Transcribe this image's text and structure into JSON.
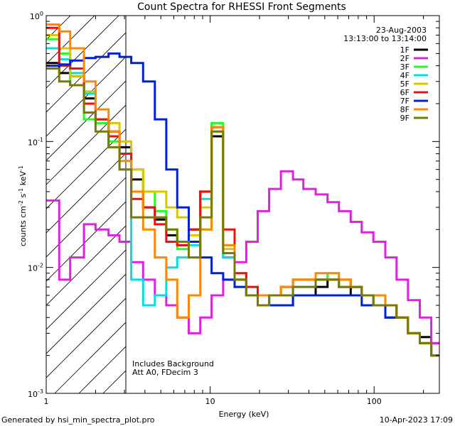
{
  "chart_data": {
    "type": "line",
    "title": "Count Spectra for RHESSI Front Segments",
    "date": "23-Aug-2003",
    "time_range": "13:13:00 to 13:14:00",
    "xlabel": "Energy (keV)",
    "ylabel_base": "counts cm",
    "ylabel_exp1": "-2",
    "ylabel_mid": " s",
    "ylabel_exp2": "-1",
    "ylabel_end": " keV",
    "ylabel_exp3": "-1",
    "xscale": "log",
    "yscale": "log",
    "xlim": [
      1,
      250
    ],
    "ylim": [
      0.001,
      1
    ],
    "x_ticks": [
      {
        "value": 1,
        "label": "1"
      },
      {
        "value": 10,
        "label": "10"
      },
      {
        "value": 100,
        "label": "100"
      }
    ],
    "y_ticks": [
      {
        "value": 1,
        "base": "10",
        "exp": "0"
      },
      {
        "value": 0.1,
        "base": "10",
        "exp": "-1"
      },
      {
        "value": 0.01,
        "base": "10",
        "exp": "-2"
      },
      {
        "value": 0.001,
        "base": "10",
        "exp": "-3"
      }
    ],
    "hatched_region_max_keV": 3,
    "annotation_lines": [
      "Includes Background",
      "Att A0, FDecim 3"
    ],
    "footer_left": "Generated by hsi_min_spectra_plot.pro",
    "footer_right": "10-Apr-2023 17:09",
    "legend_position": "top-right",
    "series": [
      {
        "name": "1F",
        "color": "#000000",
        "x": [
          1.0,
          1.2,
          1.4,
          1.7,
          2.0,
          2.4,
          2.8,
          3.3,
          3.9,
          4.6,
          5.4,
          6.3,
          7.4,
          8.7,
          10.2,
          12.0,
          14.1,
          16.6,
          19.5,
          22.9,
          27,
          32,
          37,
          44,
          52,
          61,
          72,
          84,
          99,
          117,
          137,
          161,
          190,
          223
        ],
        "y": [
          0.42,
          0.35,
          0.33,
          0.22,
          0.15,
          0.12,
          0.09,
          0.05,
          0.03,
          0.024,
          0.018,
          0.015,
          0.02,
          0.04,
          0.11,
          0.012,
          0.008,
          0.006,
          0.006,
          0.005,
          0.005,
          0.006,
          0.006,
          0.007,
          0.008,
          0.007,
          0.006,
          0.006,
          0.005,
          0.004,
          0.004,
          0.003,
          0.0028,
          0.0025
        ]
      },
      {
        "name": "2F",
        "color": "#e020e0",
        "x": [
          1.0,
          1.2,
          1.4,
          1.7,
          2.0,
          2.4,
          2.8,
          3.3,
          3.9,
          4.6,
          5.4,
          6.3,
          7.4,
          8.7,
          10.2,
          12.0,
          14.1,
          16.6,
          19.5,
          22.9,
          27,
          32,
          37,
          44,
          52,
          61,
          72,
          84,
          99,
          117,
          137,
          161,
          190,
          223
        ],
        "y": [
          0.034,
          0.008,
          0.012,
          0.022,
          0.02,
          0.018,
          0.016,
          0.011,
          0.008,
          0.006,
          0.005,
          0.004,
          0.003,
          0.004,
          0.006,
          0.008,
          0.011,
          0.016,
          0.028,
          0.042,
          0.058,
          0.05,
          0.042,
          0.038,
          0.033,
          0.028,
          0.023,
          0.019,
          0.016,
          0.012,
          0.008,
          0.0055,
          0.004,
          0.0025
        ]
      },
      {
        "name": "3F",
        "color": "#20ff20",
        "x": [
          1.0,
          1.2,
          1.4,
          1.7,
          2.0,
          2.4,
          2.8,
          3.3,
          3.9,
          4.6,
          5.4,
          6.3,
          7.4,
          8.7,
          10.2,
          12.0,
          14.1,
          16.6,
          19.5,
          22.9,
          27,
          32,
          37,
          44,
          52,
          61,
          72,
          84,
          99,
          117,
          137,
          161,
          190,
          223
        ],
        "y": [
          0.65,
          0.5,
          0.28,
          0.15,
          0.14,
          0.1,
          0.08,
          0.06,
          0.04,
          0.028,
          0.02,
          0.014,
          0.012,
          0.02,
          0.14,
          0.015,
          0.008,
          0.006,
          0.005,
          0.006,
          0.007,
          0.008,
          0.008,
          0.008,
          0.009,
          0.008,
          0.007,
          0.006,
          0.005,
          0.005,
          0.004,
          0.003,
          0.0025,
          0.002
        ]
      },
      {
        "name": "4F",
        "color": "#00e0e0",
        "x": [
          1.0,
          1.2,
          1.4,
          1.7,
          2.0,
          2.4,
          2.8,
          3.3,
          3.9,
          4.6,
          5.4,
          6.3,
          7.4,
          8.7,
          10.2,
          12.0,
          14.1,
          16.6,
          19.5,
          22.9,
          27,
          32,
          37,
          44,
          52,
          61,
          72,
          84,
          99,
          117,
          137,
          161,
          190,
          223
        ],
        "y": [
          0.55,
          0.45,
          0.35,
          0.24,
          0.15,
          0.09,
          0.06,
          0.008,
          0.005,
          0.006,
          0.01,
          0.012,
          0.015,
          0.035,
          0.13,
          0.012,
          0.007,
          0.006,
          0.005,
          0.006,
          0.006,
          0.007,
          0.007,
          0.008,
          0.008,
          0.007,
          0.007,
          0.006,
          0.005,
          0.005,
          0.004,
          0.003,
          0.0025,
          0.002
        ]
      },
      {
        "name": "5F",
        "color": "#d8c800",
        "x": [
          1.0,
          1.2,
          1.4,
          1.7,
          2.0,
          2.4,
          2.8,
          3.3,
          3.9,
          4.6,
          5.4,
          6.3,
          7.4,
          8.7,
          10.2,
          12.0,
          14.1,
          16.6,
          19.5,
          22.9,
          27,
          32,
          37,
          44,
          52,
          61,
          72,
          84,
          99,
          117,
          137,
          161,
          190,
          223
        ],
        "y": [
          0.7,
          0.55,
          0.33,
          0.25,
          0.15,
          0.14,
          0.1,
          0.06,
          0.04,
          0.04,
          0.03,
          0.025,
          0.018,
          0.03,
          0.12,
          0.014,
          0.009,
          0.007,
          0.006,
          0.006,
          0.007,
          0.008,
          0.008,
          0.008,
          0.008,
          0.007,
          0.007,
          0.006,
          0.006,
          0.005,
          0.004,
          0.003,
          0.0025,
          0.002
        ]
      },
      {
        "name": "6F",
        "color": "#ee1010",
        "x": [
          1.0,
          1.2,
          1.4,
          1.7,
          2.0,
          2.4,
          2.8,
          3.3,
          3.9,
          4.6,
          5.4,
          6.3,
          7.4,
          8.7,
          10.2,
          12.0,
          14.1,
          16.6,
          19.5,
          22.9,
          27,
          32,
          37,
          44,
          52,
          61,
          72,
          84,
          99,
          117,
          137,
          161,
          190,
          223
        ],
        "y": [
          0.8,
          0.4,
          0.38,
          0.2,
          0.15,
          0.11,
          0.08,
          0.035,
          0.03,
          0.022,
          0.016,
          0.015,
          0.02,
          0.04,
          0.13,
          0.02,
          0.009,
          0.007,
          0.006,
          0.006,
          0.007,
          0.008,
          0.008,
          0.008,
          0.008,
          0.008,
          0.007,
          0.006,
          0.006,
          0.005,
          0.004,
          0.003,
          0.0025,
          0.002
        ]
      },
      {
        "name": "7F",
        "color": "#0020e0",
        "x": [
          1.0,
          1.2,
          1.4,
          1.7,
          2.0,
          2.4,
          2.8,
          3.3,
          3.9,
          4.6,
          5.4,
          6.3,
          7.4,
          8.7,
          10.2,
          12.0,
          14.1,
          16.6,
          19.5,
          22.9,
          27,
          32,
          37,
          44,
          52,
          61,
          72,
          84,
          99,
          117,
          137,
          161,
          190,
          223
        ],
        "y": [
          0.4,
          0.41,
          0.44,
          0.46,
          0.47,
          0.5,
          0.47,
          0.42,
          0.3,
          0.15,
          0.06,
          0.03,
          0.016,
          0.012,
          0.009,
          0.008,
          0.007,
          0.006,
          0.005,
          0.005,
          0.005,
          0.006,
          0.006,
          0.006,
          0.006,
          0.006,
          0.006,
          0.005,
          0.005,
          0.004,
          0.004,
          0.003,
          0.0025,
          0.002
        ]
      },
      {
        "name": "8F",
        "color": "#ff8800",
        "x": [
          1.0,
          1.2,
          1.4,
          1.7,
          2.0,
          2.4,
          2.8,
          3.3,
          3.9,
          4.6,
          5.4,
          6.3,
          7.4,
          8.7,
          10.2,
          12.0,
          14.1,
          16.6,
          19.5,
          22.9,
          27,
          32,
          37,
          44,
          52,
          61,
          72,
          84,
          99,
          117,
          137,
          161,
          190,
          223
        ],
        "y": [
          0.85,
          0.75,
          0.55,
          0.3,
          0.18,
          0.12,
          0.07,
          0.04,
          0.02,
          0.012,
          0.008,
          0.004,
          0.006,
          0.02,
          0.13,
          0.015,
          0.008,
          0.006,
          0.006,
          0.006,
          0.007,
          0.008,
          0.008,
          0.009,
          0.009,
          0.008,
          0.007,
          0.006,
          0.006,
          0.005,
          0.004,
          0.003,
          0.0025,
          0.002
        ]
      },
      {
        "name": "9F",
        "color": "#7a7a00",
        "x": [
          1.0,
          1.2,
          1.4,
          1.7,
          2.0,
          2.4,
          2.8,
          3.3,
          3.9,
          4.6,
          5.4,
          6.3,
          7.4,
          8.7,
          10.2,
          12.0,
          14.1,
          16.6,
          19.5,
          22.9,
          27,
          32,
          37,
          44,
          52,
          61,
          72,
          84,
          99,
          117,
          137,
          161,
          190,
          223
        ],
        "y": [
          0.38,
          0.3,
          0.28,
          0.17,
          0.12,
          0.09,
          0.06,
          0.025,
          0.025,
          0.025,
          0.02,
          0.016,
          0.012,
          0.025,
          0.12,
          0.013,
          0.008,
          0.006,
          0.005,
          0.006,
          0.006,
          0.007,
          0.007,
          0.008,
          0.008,
          0.007,
          0.007,
          0.006,
          0.005,
          0.005,
          0.004,
          0.003,
          0.0025,
          0.002
        ]
      }
    ]
  }
}
